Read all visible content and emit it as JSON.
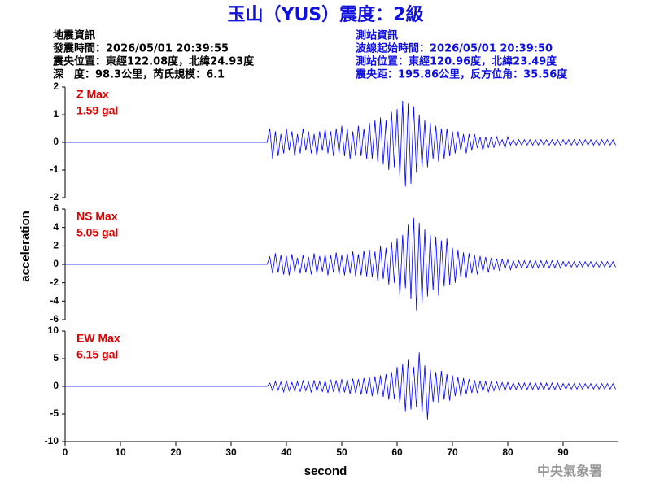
{
  "header": {
    "title": "玉山（YUS）震度：2級",
    "left": [
      "地震資訊",
      "發震時間：2026/05/01 20:39:55",
      "震央位置：東經122.08度，北緯24.93度",
      "深　度：98.3公里，芮氏規模：6.1"
    ],
    "right": [
      "測站資訊",
      "波線起始時間：2026/05/01 20:39:50",
      "測站位置：東經120.96度，北緯23.49度",
      "震央距：195.86公里，反方位角：35.56度"
    ],
    "ylabel": "acceleration",
    "xlabel": "second",
    "credit": "中央氣象署"
  },
  "chart_data": [
    {
      "type": "line",
      "annotation": [
        "Z Max",
        "1.59 gal"
      ],
      "annotation_color": "#e00000",
      "color": "#0000ff",
      "xlim": [
        0,
        100
      ],
      "ylim": [
        -2,
        2
      ],
      "yticks": [
        -2,
        -1,
        0,
        1,
        2
      ],
      "x": [
        0,
        36.5,
        37,
        37.5,
        38,
        38.5,
        39,
        39.5,
        40,
        40.5,
        41,
        41.5,
        42,
        42.5,
        43,
        43.5,
        44,
        44.5,
        45,
        45.5,
        46,
        46.5,
        47,
        47.5,
        48,
        48.5,
        49,
        49.5,
        50,
        50.5,
        51,
        51.5,
        52,
        52.5,
        53,
        53.5,
        54,
        54.5,
        55,
        55.5,
        56,
        56.5,
        57,
        57.5,
        58,
        58.5,
        59,
        59.5,
        60,
        60.5,
        61,
        61.5,
        62,
        62.5,
        63,
        63.5,
        64,
        64.5,
        65,
        65.5,
        66,
        66.5,
        67,
        67.5,
        68,
        68.5,
        69,
        69.5,
        70,
        70.5,
        71,
        71.5,
        72,
        72.5,
        73,
        73.5,
        74,
        74.5,
        75,
        75.5,
        76,
        76.5,
        77,
        77.5,
        78,
        78.5,
        79,
        79.5,
        80,
        80.5,
        81,
        81.5,
        82,
        82.5,
        83,
        83.5,
        84,
        84.5,
        85,
        85.5,
        86,
        86.5,
        87,
        87.5,
        88,
        88.5,
        89,
        89.5,
        90,
        90.5,
        91,
        91.5,
        92,
        92.5,
        93,
        93.5,
        94,
        94.5,
        95,
        95.5,
        96,
        96.5,
        97,
        97.5,
        98,
        98.5,
        99,
        99.5
      ],
      "values": [
        0,
        0,
        0.5,
        -0.6,
        0.4,
        -0.5,
        0.3,
        -0.4,
        0.5,
        -0.3,
        0.4,
        -0.5,
        0.3,
        -0.4,
        0.5,
        -0.3,
        0.4,
        -0.4,
        0.3,
        -0.5,
        0.4,
        -0.3,
        0.5,
        -0.4,
        0.4,
        -0.5,
        0.5,
        -0.4,
        0.6,
        -0.5,
        0.5,
        -0.6,
        0.4,
        -0.5,
        0.6,
        -0.5,
        0.5,
        -0.6,
        0.7,
        -0.6,
        0.8,
        -0.7,
        0.9,
        -0.8,
        0.8,
        -1.0,
        1.1,
        -0.9,
        1.2,
        -1.3,
        1.5,
        -1.6,
        1.4,
        -1.5,
        1.3,
        -1.1,
        1.0,
        -0.9,
        0.8,
        -0.9,
        0.7,
        -0.6,
        0.6,
        -0.7,
        0.5,
        -0.6,
        0.5,
        -0.5,
        0.4,
        -0.4,
        0.4,
        -0.3,
        0.3,
        -0.4,
        0.3,
        -0.3,
        0.3,
        -0.2,
        0.2,
        -0.3,
        0.2,
        -0.2,
        0.2,
        -0.2,
        0.2,
        -0.1,
        0.1,
        -0.2,
        0.2,
        -0.1,
        0.1,
        -0.1,
        0.1,
        -0.1,
        0.1,
        -0.1,
        0.1,
        -0.1,
        0.1,
        -0.1,
        0.1,
        -0.1,
        0.1,
        -0.1,
        0.1,
        -0.1,
        0.1,
        -0.1,
        0.1,
        -0.1,
        0.1,
        -0.1,
        0.1,
        -0.1,
        0.1,
        -0.1,
        0.1,
        -0.1,
        0.1,
        -0.1,
        0.1,
        -0.1,
        0.1,
        -0.1,
        0.1,
        -0.1,
        0.1,
        -0.1
      ]
    },
    {
      "type": "line",
      "annotation": [
        "NS Max",
        "5.05 gal"
      ],
      "annotation_color": "#e00000",
      "color": "#0000ff",
      "xlim": [
        0,
        100
      ],
      "ylim": [
        -6,
        6
      ],
      "yticks": [
        -6,
        -4,
        -2,
        0,
        2,
        4,
        6
      ],
      "x": [
        0,
        36.5,
        37,
        37.5,
        38,
        38.5,
        39,
        39.5,
        40,
        40.5,
        41,
        41.5,
        42,
        42.5,
        43,
        43.5,
        44,
        44.5,
        45,
        45.5,
        46,
        46.5,
        47,
        47.5,
        48,
        48.5,
        49,
        49.5,
        50,
        50.5,
        51,
        51.5,
        52,
        52.5,
        53,
        53.5,
        54,
        54.5,
        55,
        55.5,
        56,
        56.5,
        57,
        57.5,
        58,
        58.5,
        59,
        59.5,
        60,
        60.5,
        61,
        61.5,
        62,
        62.5,
        63,
        63.5,
        64,
        64.5,
        65,
        65.5,
        66,
        66.5,
        67,
        67.5,
        68,
        68.5,
        69,
        69.5,
        70,
        70.5,
        71,
        71.5,
        72,
        72.5,
        73,
        73.5,
        74,
        74.5,
        75,
        75.5,
        76,
        76.5,
        77,
        77.5,
        78,
        78.5,
        79,
        79.5,
        80,
        80.5,
        81,
        81.5,
        82,
        82.5,
        83,
        83.5,
        84,
        84.5,
        85,
        85.5,
        86,
        86.5,
        87,
        87.5,
        88,
        88.5,
        89,
        89.5,
        90,
        90.5,
        91,
        91.5,
        92,
        92.5,
        93,
        93.5,
        94,
        94.5,
        95,
        95.5,
        96,
        96.5,
        97,
        97.5,
        98,
        98.5,
        99,
        99.5
      ],
      "values": [
        0,
        0,
        0.8,
        -1.0,
        1.2,
        -0.9,
        1.0,
        -1.1,
        0.9,
        -1.2,
        1.1,
        -0.8,
        0.7,
        -1.0,
        1.0,
        -0.9,
        0.8,
        -1.1,
        1.2,
        -1.0,
        0.9,
        -0.8,
        1.1,
        -1.2,
        1.0,
        -0.9,
        1.3,
        -1.1,
        1.0,
        -1.2,
        1.2,
        -1.0,
        1.4,
        -1.3,
        1.1,
        -1.2,
        1.5,
        -1.3,
        1.6,
        -1.4,
        1.4,
        -1.8,
        2.0,
        -1.6,
        1.8,
        -2.2,
        2.4,
        -2.0,
        2.8,
        -3.5,
        3.2,
        -2.6,
        4.3,
        -3.8,
        5.05,
        -5.0,
        4.5,
        -4.2,
        3.8,
        -3.5,
        3.2,
        -2.8,
        3.0,
        -3.4,
        2.6,
        -2.4,
        2.8,
        -2.2,
        1.8,
        -2.0,
        1.6,
        -1.4,
        1.3,
        -1.5,
        1.2,
        -1.0,
        1.0,
        -1.1,
        0.9,
        -0.8,
        0.8,
        -0.9,
        0.7,
        -0.6,
        0.6,
        -0.7,
        0.6,
        -0.5,
        0.5,
        -0.6,
        0.4,
        -0.4,
        0.4,
        -0.4,
        0.4,
        -0.4,
        0.4,
        -0.4,
        0.4,
        -0.4,
        0.4,
        -0.4,
        0.4,
        -0.4,
        0.4,
        -0.4,
        0.4,
        -0.4,
        0.3,
        -0.3,
        0.3,
        -0.3,
        0.3,
        -0.3,
        0.3,
        -0.3,
        0.3,
        -0.3,
        0.3,
        -0.3,
        0.3,
        -0.3,
        0.3,
        -0.3,
        0.3,
        -0.3,
        0.3,
        -0.3
      ]
    },
    {
      "type": "line",
      "annotation": [
        "EW Max",
        "6.15 gal"
      ],
      "annotation_color": "#e00000",
      "color": "#0000ff",
      "xlim": [
        0,
        100
      ],
      "ylim": [
        -10,
        10
      ],
      "yticks": [
        -10,
        -5,
        0,
        5,
        10
      ],
      "xticks": [
        0,
        10,
        20,
        30,
        40,
        50,
        60,
        70,
        80,
        90
      ],
      "x": [
        0,
        36.5,
        37,
        37.5,
        38,
        38.5,
        39,
        39.5,
        40,
        40.5,
        41,
        41.5,
        42,
        42.5,
        43,
        43.5,
        44,
        44.5,
        45,
        45.5,
        46,
        46.5,
        47,
        47.5,
        48,
        48.5,
        49,
        49.5,
        50,
        50.5,
        51,
        51.5,
        52,
        52.5,
        53,
        53.5,
        54,
        54.5,
        55,
        55.5,
        56,
        56.5,
        57,
        57.5,
        58,
        58.5,
        59,
        59.5,
        60,
        60.5,
        61,
        61.5,
        62,
        62.5,
        63,
        63.5,
        64,
        64.5,
        65,
        65.5,
        66,
        66.5,
        67,
        67.5,
        68,
        68.5,
        69,
        69.5,
        70,
        70.5,
        71,
        71.5,
        72,
        72.5,
        73,
        73.5,
        74,
        74.5,
        75,
        75.5,
        76,
        76.5,
        77,
        77.5,
        78,
        78.5,
        79,
        79.5,
        80,
        80.5,
        81,
        81.5,
        82,
        82.5,
        83,
        83.5,
        84,
        84.5,
        85,
        85.5,
        86,
        86.5,
        87,
        87.5,
        88,
        88.5,
        89,
        89.5,
        90,
        90.5,
        91,
        91.5,
        92,
        92.5,
        93,
        93.5,
        94,
        94.5,
        95,
        95.5,
        96,
        96.5,
        97,
        97.5,
        98,
        98.5,
        99,
        99.5
      ],
      "values": [
        0,
        0,
        0.6,
        -0.8,
        0.9,
        -0.7,
        0.8,
        -1.0,
        1.0,
        -0.8,
        0.7,
        -0.9,
        0.9,
        -1.0,
        1.0,
        -0.8,
        0.8,
        -1.1,
        1.1,
        -0.9,
        0.9,
        -1.0,
        1.0,
        -1.2,
        1.2,
        -1.0,
        1.1,
        -1.3,
        1.3,
        -1.1,
        1.2,
        -1.4,
        1.4,
        -1.2,
        1.3,
        -1.5,
        1.5,
        -1.3,
        1.6,
        -1.8,
        1.8,
        -1.6,
        2.0,
        -1.9,
        2.2,
        -2.4,
        2.6,
        -2.3,
        3.5,
        -3.2,
        4.0,
        -4.5,
        4.8,
        -4.2,
        3.5,
        -3.8,
        6.15,
        -4.8,
        3.8,
        -6.0,
        3.0,
        -2.8,
        2.6,
        -3.0,
        2.8,
        -2.4,
        2.2,
        -2.6,
        2.0,
        -1.8,
        1.6,
        -1.8,
        1.5,
        -1.4,
        1.3,
        -1.2,
        1.1,
        -1.2,
        1.0,
        -0.9,
        0.9,
        -1.0,
        0.8,
        -0.8,
        0.8,
        -0.7,
        0.7,
        -0.8,
        0.7,
        -0.6,
        0.6,
        -0.6,
        0.6,
        -0.6,
        0.6,
        -0.6,
        0.6,
        -0.6,
        0.6,
        -0.6,
        0.6,
        -0.6,
        0.6,
        -0.6,
        0.6,
        -0.6,
        0.6,
        -0.6,
        0.5,
        -0.5,
        0.5,
        -0.5,
        0.5,
        -0.5,
        0.5,
        -0.5,
        0.5,
        -0.5,
        0.5,
        -0.5,
        0.5,
        -0.5,
        0.5,
        -0.5,
        0.5,
        -0.5,
        0.5,
        -0.5
      ]
    }
  ]
}
